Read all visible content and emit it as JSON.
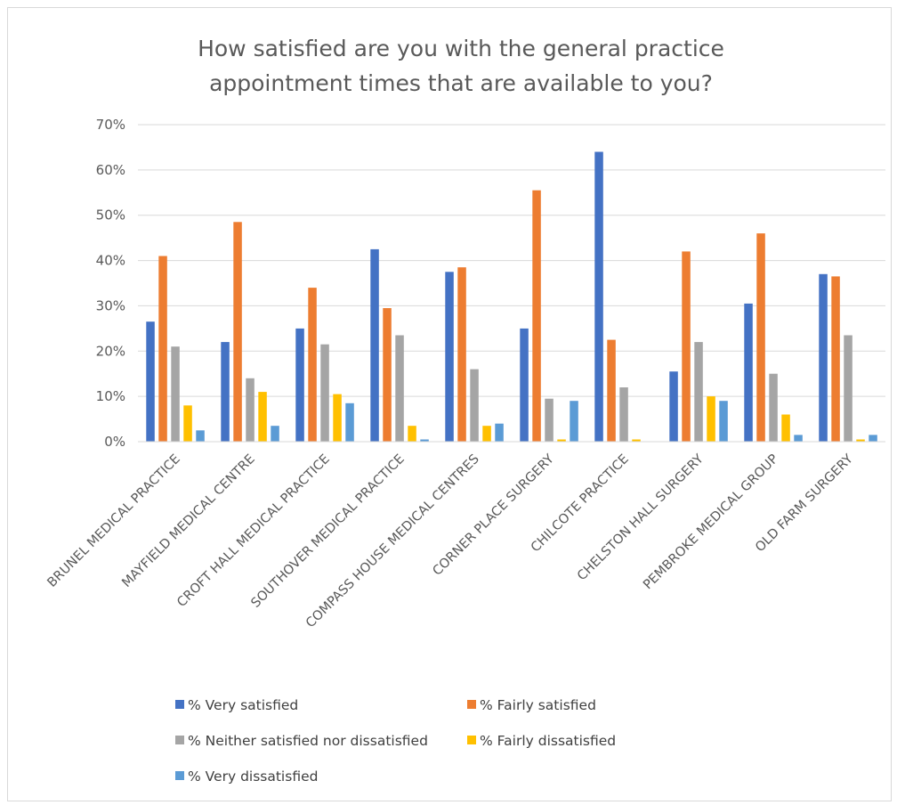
{
  "chart_data": {
    "type": "bar",
    "title_lines": [
      "How satisfied are you with the general practice",
      "appointment times that are available to you?"
    ],
    "categories": [
      "BRUNEL MEDICAL PRACTICE",
      "MAYFIELD MEDICAL CENTRE",
      "CROFT HALL MEDICAL PRACTICE",
      "SOUTHOVER MEDICAL PRACTICE",
      "COMPASS HOUSE MEDICAL CENTRES",
      "CORNER PLACE SURGERY",
      "CHILCOTE PRACTICE",
      "CHELSTON HALL SURGERY",
      "PEMBROKE MEDICAL GROUP",
      "OLD FARM SURGERY"
    ],
    "series": [
      {
        "name": "% Very satisfied",
        "color": "#4472c4",
        "values": [
          26.5,
          22,
          25,
          42.5,
          37.5,
          25,
          64,
          15.5,
          30.5,
          37
        ]
      },
      {
        "name": "% Fairly satisfied",
        "color": "#ed7d31",
        "values": [
          41,
          48.5,
          34,
          29.5,
          38.5,
          55.5,
          22.5,
          42,
          46,
          36.5
        ]
      },
      {
        "name": "% Neither satisfied nor dissatisfied",
        "color": "#a5a5a5",
        "values": [
          21,
          14,
          21.5,
          23.5,
          16,
          9.5,
          12,
          22,
          15,
          23.5
        ]
      },
      {
        "name": "% Fairly dissatisfied",
        "color": "#ffc000",
        "values": [
          8,
          11,
          10.5,
          3.5,
          3.5,
          0.5,
          0.5,
          10,
          6,
          0.5
        ]
      },
      {
        "name": "% Very dissatisfied",
        "color": "#5b9bd5",
        "values": [
          2.5,
          3.5,
          8.5,
          0.5,
          4,
          9,
          0,
          9,
          1.5,
          1.5
        ]
      }
    ],
    "yticks": [
      "0%",
      "10%",
      "20%",
      "30%",
      "40%",
      "50%",
      "60%",
      "70%"
    ],
    "ylim": [
      0,
      70
    ],
    "grid": true,
    "legend_position": "bottom"
  }
}
